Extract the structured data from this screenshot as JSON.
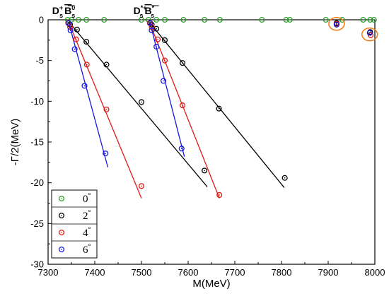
{
  "chart_data": {
    "type": "scatter",
    "xlabel": "M(MeV)",
    "ylabel": "-Γ/2(MeV)",
    "xlim": [
      7300,
      8000
    ],
    "ylim": [
      -30,
      0
    ],
    "xticks": [
      "7300",
      "7400",
      "7500",
      "7600",
      "7700",
      "7800",
      "7900",
      "8000"
    ],
    "yticks": [
      "0",
      "-5",
      "-10",
      "-15",
      "-20",
      "-25",
      "-30"
    ],
    "legend": {
      "placement": "bottom-left"
    },
    "threshold_labels": [
      {
        "base": "D",
        "sub": "s",
        "sup": "+",
        "base2": "B",
        "sub2": "s",
        "sup2": "0",
        "x": 7336
      },
      {
        "base": "D",
        "sub": "s",
        "sup": "*+",
        "base2": "B",
        "sub2": "s",
        "sup2": "*",
        "x": 7510
      }
    ],
    "series": [
      {
        "name": "0",
        "unit": "°",
        "color": "#2e9e2e",
        "points": [
          [
            7342,
            0
          ],
          [
            7350,
            0
          ],
          [
            7365,
            0
          ],
          [
            7382,
            0
          ],
          [
            7420,
            0
          ],
          [
            7500,
            0
          ],
          [
            7515,
            0
          ],
          [
            7532,
            0
          ],
          [
            7550,
            0
          ],
          [
            7590,
            0
          ],
          [
            7635,
            0
          ],
          [
            7668,
            0
          ],
          [
            7758,
            0
          ],
          [
            7810,
            0
          ],
          [
            7818,
            0
          ],
          [
            7895,
            0
          ],
          [
            7930,
            0
          ],
          [
            7975,
            0
          ],
          [
            7990,
            0
          ],
          [
            7998,
            0
          ]
        ],
        "lines": []
      },
      {
        "name": "2",
        "unit": "°",
        "color": "#000000",
        "points": [
          [
            7343,
            -0.4
          ],
          [
            7347,
            -0.6
          ],
          [
            7362,
            -1.2
          ],
          [
            7382,
            -2.7
          ],
          [
            7425,
            -5.5
          ],
          [
            7500,
            -10.1
          ],
          [
            7635,
            -18.5
          ],
          [
            7518,
            -0.4
          ],
          [
            7522,
            -0.6
          ],
          [
            7532,
            -1.1
          ],
          [
            7550,
            -2.5
          ],
          [
            7588,
            -5.3
          ],
          [
            7666,
            -10.9
          ],
          [
            7807,
            -19.4
          ],
          [
            7918,
            -0.4
          ],
          [
            7990,
            -1.5
          ]
        ],
        "lines": [
          [
            [
              7345,
              -0.3
            ],
            [
              7641,
              -20.5
            ]
          ],
          [
            [
              7517,
              -0.3
            ],
            [
              7806,
              -20.6
            ]
          ]
        ]
      },
      {
        "name": "4",
        "unit": "°",
        "color": "#e01818",
        "points": [
          [
            7343,
            -0.4
          ],
          [
            7347,
            -0.9
          ],
          [
            7360,
            -2.4
          ],
          [
            7383,
            -5.5
          ],
          [
            7425,
            -11.0
          ],
          [
            7500,
            -20.4
          ],
          [
            7518,
            -0.4
          ],
          [
            7522,
            -0.9
          ],
          [
            7535,
            -2.4
          ],
          [
            7550,
            -5.0
          ],
          [
            7588,
            -10.5
          ],
          [
            7667,
            -21.5
          ],
          [
            7918,
            -0.5
          ],
          [
            7991,
            -1.9
          ]
        ],
        "lines": [
          [
            [
              7344,
              -0.3
            ],
            [
              7500,
              -21.9
            ]
          ],
          [
            [
              7517,
              -0.3
            ],
            [
              7667,
              -21.9
            ]
          ]
        ]
      },
      {
        "name": "6",
        "unit": "°",
        "color": "#1818e0",
        "points": [
          [
            7344,
            -0.4
          ],
          [
            7348,
            -1.3
          ],
          [
            7357,
            -3.6
          ],
          [
            7378,
            -8.1
          ],
          [
            7423,
            -16.4
          ],
          [
            7519,
            -0.4
          ],
          [
            7522,
            -1.3
          ],
          [
            7532,
            -3.3
          ],
          [
            7547,
            -7.5
          ],
          [
            7586,
            -15.8
          ],
          [
            7918,
            -0.6
          ],
          [
            7989,
            -1.6
          ]
        ],
        "lines": [
          [
            [
              7344,
              -0.3
            ],
            [
              7428,
              -18.1
            ]
          ],
          [
            [
              7518,
              -0.3
            ],
            [
              7592,
              -16.8
            ]
          ]
        ]
      }
    ],
    "highlights": [
      {
        "x": 7918,
        "y": -0.5,
        "color": "#f08020"
      },
      {
        "x": 7989,
        "y": -1.8,
        "color": "#f08020"
      }
    ]
  }
}
